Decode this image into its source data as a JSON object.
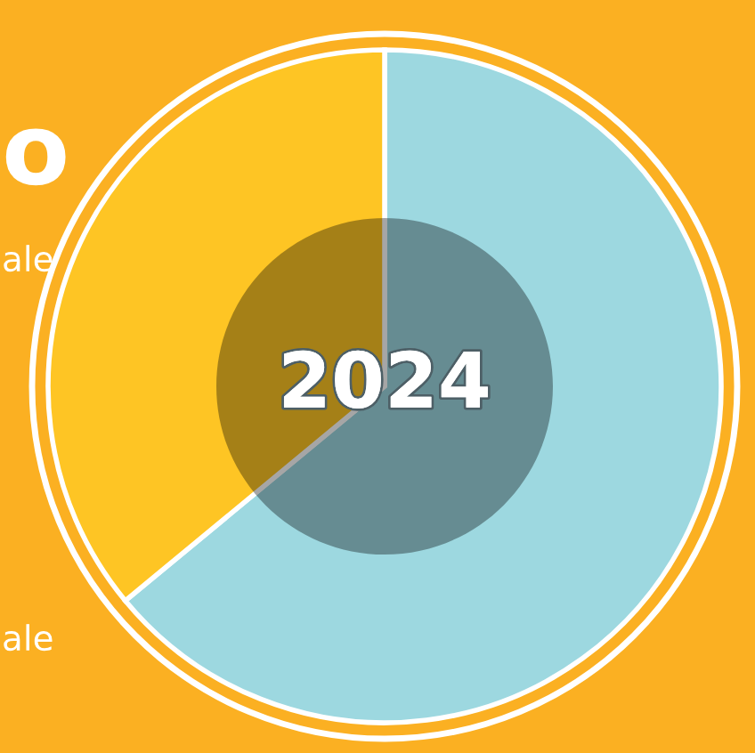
{
  "chart_data": {
    "type": "donut",
    "title": "2024",
    "categories": [
      null,
      null
    ],
    "values": [
      64,
      36
    ],
    "colors": [
      "#9dd8e0",
      "#fec524"
    ],
    "annotations": [
      "o",
      "ale",
      "ale"
    ]
  }
}
